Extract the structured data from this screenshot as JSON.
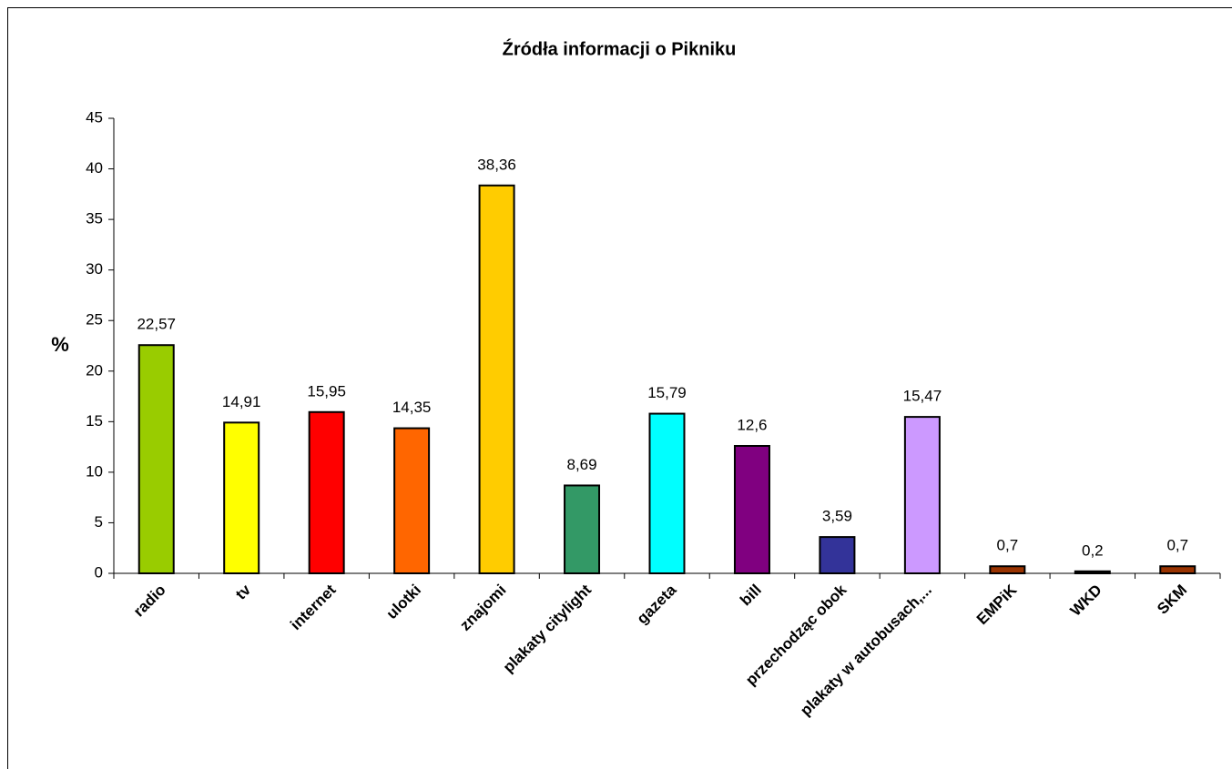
{
  "chart_data": {
    "type": "bar",
    "title": "Źródła informacji o Pikniku",
    "ylabel": "%",
    "categories": [
      "radio",
      "tv",
      "internet",
      "ulotki",
      "znajomi",
      "plakaty citylight",
      "gazeta",
      "bill",
      "przechodząc obok",
      "plakaty w autobusach,...",
      "EMPiK",
      "WKD",
      "SKM"
    ],
    "values": [
      22.57,
      14.91,
      15.95,
      14.35,
      38.36,
      8.69,
      15.79,
      12.6,
      3.59,
      15.47,
      0.7,
      0.2,
      0.7
    ],
    "value_labels": [
      "22,57",
      "14,91",
      "15,95",
      "14,35",
      "38,36",
      "8,69",
      "15,79",
      "12,6",
      "3,59",
      "15,47",
      "0,7",
      "0,2",
      "0,7"
    ],
    "colors": [
      "#99cc00",
      "#ffff00",
      "#ff0000",
      "#ff6600",
      "#ffcc00",
      "#339966",
      "#00ffff",
      "#800080",
      "#333399",
      "#cc99ff",
      "#993300",
      "#000000",
      "#993300"
    ],
    "ylim": [
      0,
      45
    ],
    "yticks": [
      0,
      5,
      10,
      15,
      20,
      25,
      30,
      35,
      40,
      45
    ],
    "grid": false
  }
}
